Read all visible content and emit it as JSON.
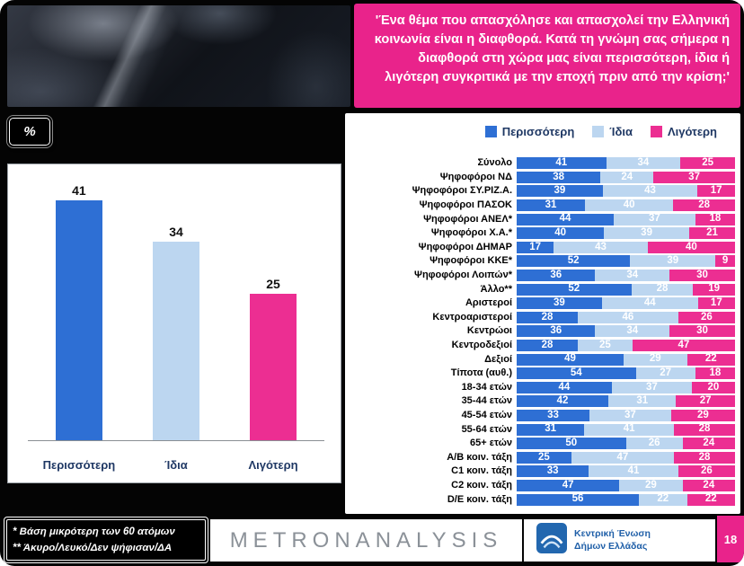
{
  "header": {
    "question": "'Ένα θέμα που απασχόλησε και απασχολεί την Ελληνική κοινωνία είναι η διαφθορά. Κατά τη γνώμη σας σήμερα η διαφθορά στη χώρα μας είναι περισσότερη, ίδια ή λιγότερη συγκριτικά με την εποχή πριν από την κρίση;'"
  },
  "percent_badge": "%",
  "colors": {
    "more": "#2E6FD4",
    "same": "#BCD6F0",
    "less": "#EC2E92",
    "accent": "#E9238B",
    "legend_text": "#1F3864"
  },
  "legend": [
    {
      "label": "Περισσότερη",
      "color_key": "more"
    },
    {
      "label": "Ίδια",
      "color_key": "same"
    },
    {
      "label": "Λιγότερη",
      "color_key": "less"
    }
  ],
  "chart_data": [
    {
      "type": "bar",
      "title": "",
      "categories": [
        "Περισσότερη",
        "Ίδια",
        "Λιγότερη"
      ],
      "values": [
        41,
        34,
        25
      ],
      "color_keys": [
        "more",
        "same",
        "less"
      ],
      "xlabel": "",
      "ylabel": "",
      "ylim": [
        0,
        45
      ],
      "grid": false
    },
    {
      "type": "bar-stacked-horizontal",
      "title": "",
      "categories": [
        "Σύνολο",
        "Ψηφοφόροι ΝΔ",
        "Ψηφοφόροι ΣΥ.ΡΙΖ.Α.",
        "Ψηφοφόροι ΠΑΣΟΚ",
        "Ψηφοφόροι ΑΝΕΛ*",
        "Ψηφοφόροι Χ.Α.*",
        "Ψηφοφόροι ΔΗΜΑΡ",
        "Ψηφοφόροι ΚΚΕ*",
        "Ψηφοφόροι Λοιπών*",
        "Άλλο**",
        "Αριστεροί",
        "Κεντροαριστεροί",
        "Κεντρώοι",
        "Κεντροδεξιοί",
        "Δεξιοί",
        "Τίποτα (αυθ.)",
        "18-34 ετών",
        "35-44 ετών",
        "45-54 ετών",
        "55-64 ετών",
        "65+ ετών",
        "Α/Β κοιν. τάξη",
        "C1 κοιν. τάξη",
        "C2 κοιν. τάξη",
        "D/E κοιν. τάξη"
      ],
      "series": [
        {
          "name": "Περισσότερη",
          "values": [
            41,
            38,
            39,
            31,
            44,
            40,
            17,
            52,
            36,
            52,
            39,
            28,
            36,
            28,
            49,
            54,
            44,
            42,
            33,
            31,
            50,
            25,
            33,
            47,
            56
          ]
        },
        {
          "name": "Ίδια",
          "values": [
            34,
            24,
            43,
            40,
            37,
            39,
            43,
            39,
            34,
            28,
            44,
            46,
            34,
            25,
            29,
            27,
            37,
            31,
            37,
            41,
            26,
            47,
            41,
            29,
            22
          ]
        },
        {
          "name": "Λιγότερη",
          "values": [
            25,
            37,
            17,
            28,
            18,
            21,
            40,
            9,
            30,
            19,
            17,
            26,
            30,
            47,
            22,
            18,
            20,
            27,
            29,
            28,
            24,
            28,
            26,
            24,
            22
          ]
        }
      ],
      "color_keys": [
        "more",
        "same",
        "less"
      ],
      "xlim": [
        0,
        100
      ],
      "legend_position": "top",
      "grid": false
    }
  ],
  "footnotes": [
    "*  Βάση μικρότερη των 60 ατόμων",
    "** Άκυρο/Λευκό/Δεν ψήφισαν/ΔΑ"
  ],
  "footer": {
    "metron_logo": "METRONANALYSIS",
    "kede_line1": "Κεντρική Ένωση",
    "kede_line2": "Δήμων Ελλάδας",
    "page": "18"
  }
}
